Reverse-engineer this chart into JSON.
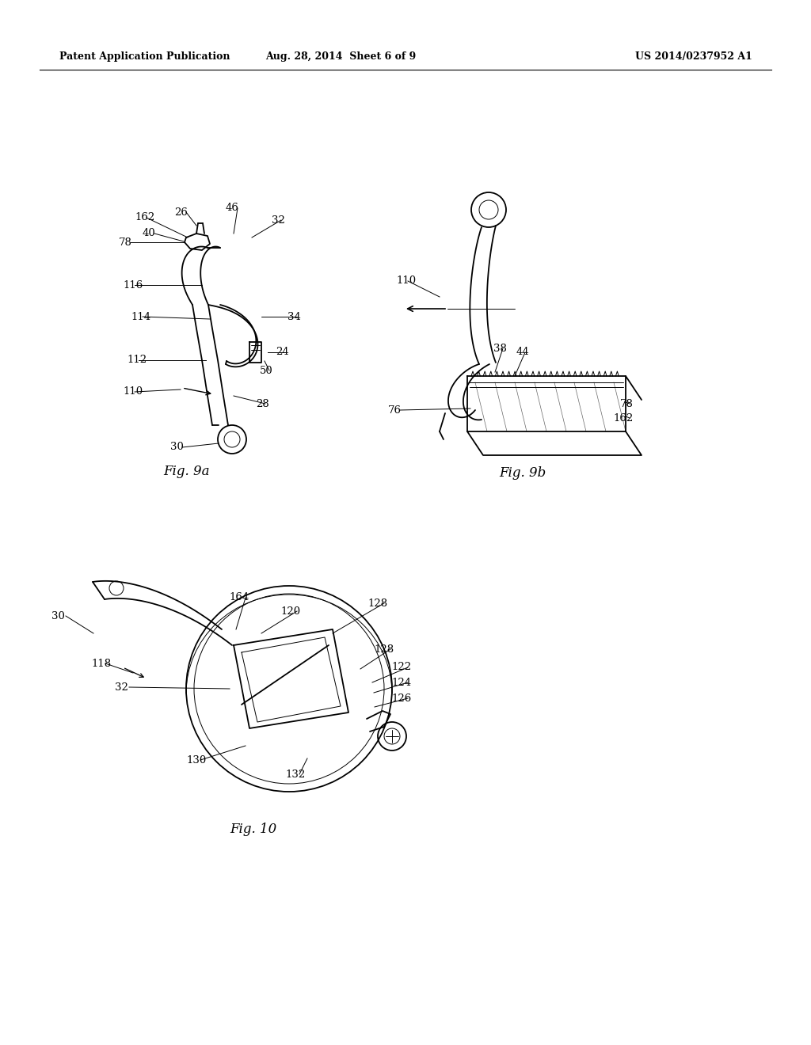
{
  "bg_color": "#ffffff",
  "header_left": "Patent Application Publication",
  "header_center": "Aug. 28, 2014  Sheet 6 of 9",
  "header_right": "US 2014/0237952 A1",
  "fig9a_label": "Fig. 9a",
  "fig9b_label": "Fig. 9b",
  "fig10_label": "Fig. 10",
  "lw": 1.3,
  "lw_thin": 0.7,
  "annotation_fontsize": 9.5
}
